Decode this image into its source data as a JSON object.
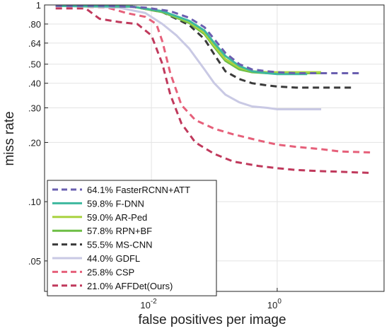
{
  "chart_data": {
    "type": "line",
    "xlabel": "false positives per image",
    "ylabel": "miss rate",
    "x_scale": "log",
    "y_scale": "log",
    "xlim": [
      0.0002,
      50
    ],
    "ylim": [
      0.035,
      1
    ],
    "x_ticks": [
      {
        "value": 0.01,
        "base": "10",
        "exp": "-2"
      },
      {
        "value": 1,
        "base": "10",
        "exp": "0"
      }
    ],
    "y_ticks": [
      {
        "value": 1,
        "label": "1"
      },
      {
        "value": 0.8,
        "label": ".80"
      },
      {
        "value": 0.64,
        "label": ".64"
      },
      {
        "value": 0.5,
        "label": ".50"
      },
      {
        "value": 0.4,
        "label": ".40"
      },
      {
        "value": 0.3,
        "label": ".30"
      },
      {
        "value": 0.2,
        "label": ".20"
      },
      {
        "value": 0.1,
        "label": ".10"
      },
      {
        "value": 0.05,
        "label": ".05"
      }
    ],
    "grid": true,
    "legend_position": "bottom-left",
    "series": [
      {
        "name": "64.1% FasterRCNN+ATT",
        "color": "#6a5fb0",
        "dashed": true,
        "x": [
          0.0003,
          0.002,
          0.008,
          0.02,
          0.04,
          0.07,
          0.1,
          0.15,
          0.25,
          0.4,
          0.7,
          1.0,
          2.0,
          5.0,
          20
        ],
        "y": [
          0.99,
          0.99,
          0.97,
          0.93,
          0.86,
          0.77,
          0.67,
          0.57,
          0.5,
          0.47,
          0.46,
          0.455,
          0.45,
          0.45,
          0.45
        ]
      },
      {
        "name": "59.8% F-DNN",
        "color": "#3db89e",
        "dashed": false,
        "x": [
          0.0003,
          0.005,
          0.015,
          0.04,
          0.07,
          0.1,
          0.15,
          0.25,
          0.4,
          0.7,
          1.0,
          2.0,
          3.0
        ],
        "y": [
          0.99,
          0.98,
          0.93,
          0.83,
          0.74,
          0.64,
          0.55,
          0.49,
          0.46,
          0.45,
          0.445,
          0.445,
          0.445
        ]
      },
      {
        "name": "59.0% AR-Ped",
        "color": "#a9d340",
        "dashed": false,
        "x": [
          0.0003,
          0.005,
          0.015,
          0.04,
          0.07,
          0.1,
          0.15,
          0.25,
          0.4,
          0.7,
          1.0,
          2.0,
          5.0
        ],
        "y": [
          0.99,
          0.98,
          0.93,
          0.82,
          0.72,
          0.62,
          0.53,
          0.48,
          0.46,
          0.455,
          0.455,
          0.455,
          0.455
        ]
      },
      {
        "name": "57.8% RPN+BF",
        "color": "#6dbe45",
        "dashed": false,
        "x": [
          0.0003,
          0.005,
          0.015,
          0.04,
          0.07,
          0.1,
          0.15,
          0.25,
          0.4,
          0.7,
          1.0,
          2.0,
          5.0
        ],
        "y": [
          0.99,
          0.98,
          0.92,
          0.81,
          0.71,
          0.61,
          0.52,
          0.47,
          0.455,
          0.45,
          0.45,
          0.45,
          0.45
        ]
      },
      {
        "name": "55.5% MS-CNN",
        "color": "#3a3a3a",
        "dashed": true,
        "x": [
          0.0003,
          0.005,
          0.015,
          0.04,
          0.07,
          0.1,
          0.15,
          0.25,
          0.4,
          0.7,
          1.0,
          2.0,
          5.0,
          15
        ],
        "y": [
          0.99,
          0.98,
          0.92,
          0.79,
          0.67,
          0.56,
          0.46,
          0.42,
          0.4,
          0.39,
          0.385,
          0.38,
          0.38,
          0.38
        ]
      },
      {
        "name": "44.0% GDFL",
        "color": "#c9c9e4",
        "dashed": false,
        "x": [
          0.0003,
          0.003,
          0.008,
          0.015,
          0.025,
          0.04,
          0.07,
          0.1,
          0.15,
          0.25,
          0.4,
          0.7,
          1.0,
          2.0,
          5.0
        ],
        "y": [
          0.99,
          0.97,
          0.91,
          0.8,
          0.7,
          0.6,
          0.47,
          0.4,
          0.35,
          0.32,
          0.305,
          0.3,
          0.295,
          0.295,
          0.295
        ]
      },
      {
        "name": "25.8% CSP",
        "color": "#e6607a",
        "dashed": true,
        "x": [
          0.0003,
          0.002,
          0.004,
          0.008,
          0.012,
          0.015,
          0.02,
          0.03,
          0.05,
          0.1,
          0.2,
          0.5,
          1.0,
          2.0,
          5.0,
          10,
          30
        ],
        "y": [
          0.99,
          0.97,
          0.91,
          0.87,
          0.8,
          0.65,
          0.45,
          0.31,
          0.26,
          0.235,
          0.22,
          0.205,
          0.195,
          0.19,
          0.185,
          0.18,
          0.178
        ]
      },
      {
        "name": "21.0% AFFDet(Ours)",
        "color": "#c0395c",
        "dashed": true,
        "x": [
          0.0003,
          0.0009,
          0.0015,
          0.003,
          0.006,
          0.01,
          0.015,
          0.02,
          0.03,
          0.05,
          0.1,
          0.2,
          0.5,
          1.0,
          2.0,
          5.0,
          10,
          30
        ],
        "y": [
          0.96,
          0.96,
          0.85,
          0.82,
          0.8,
          0.7,
          0.5,
          0.35,
          0.25,
          0.2,
          0.175,
          0.16,
          0.152,
          0.148,
          0.145,
          0.143,
          0.142,
          0.14
        ]
      }
    ]
  }
}
